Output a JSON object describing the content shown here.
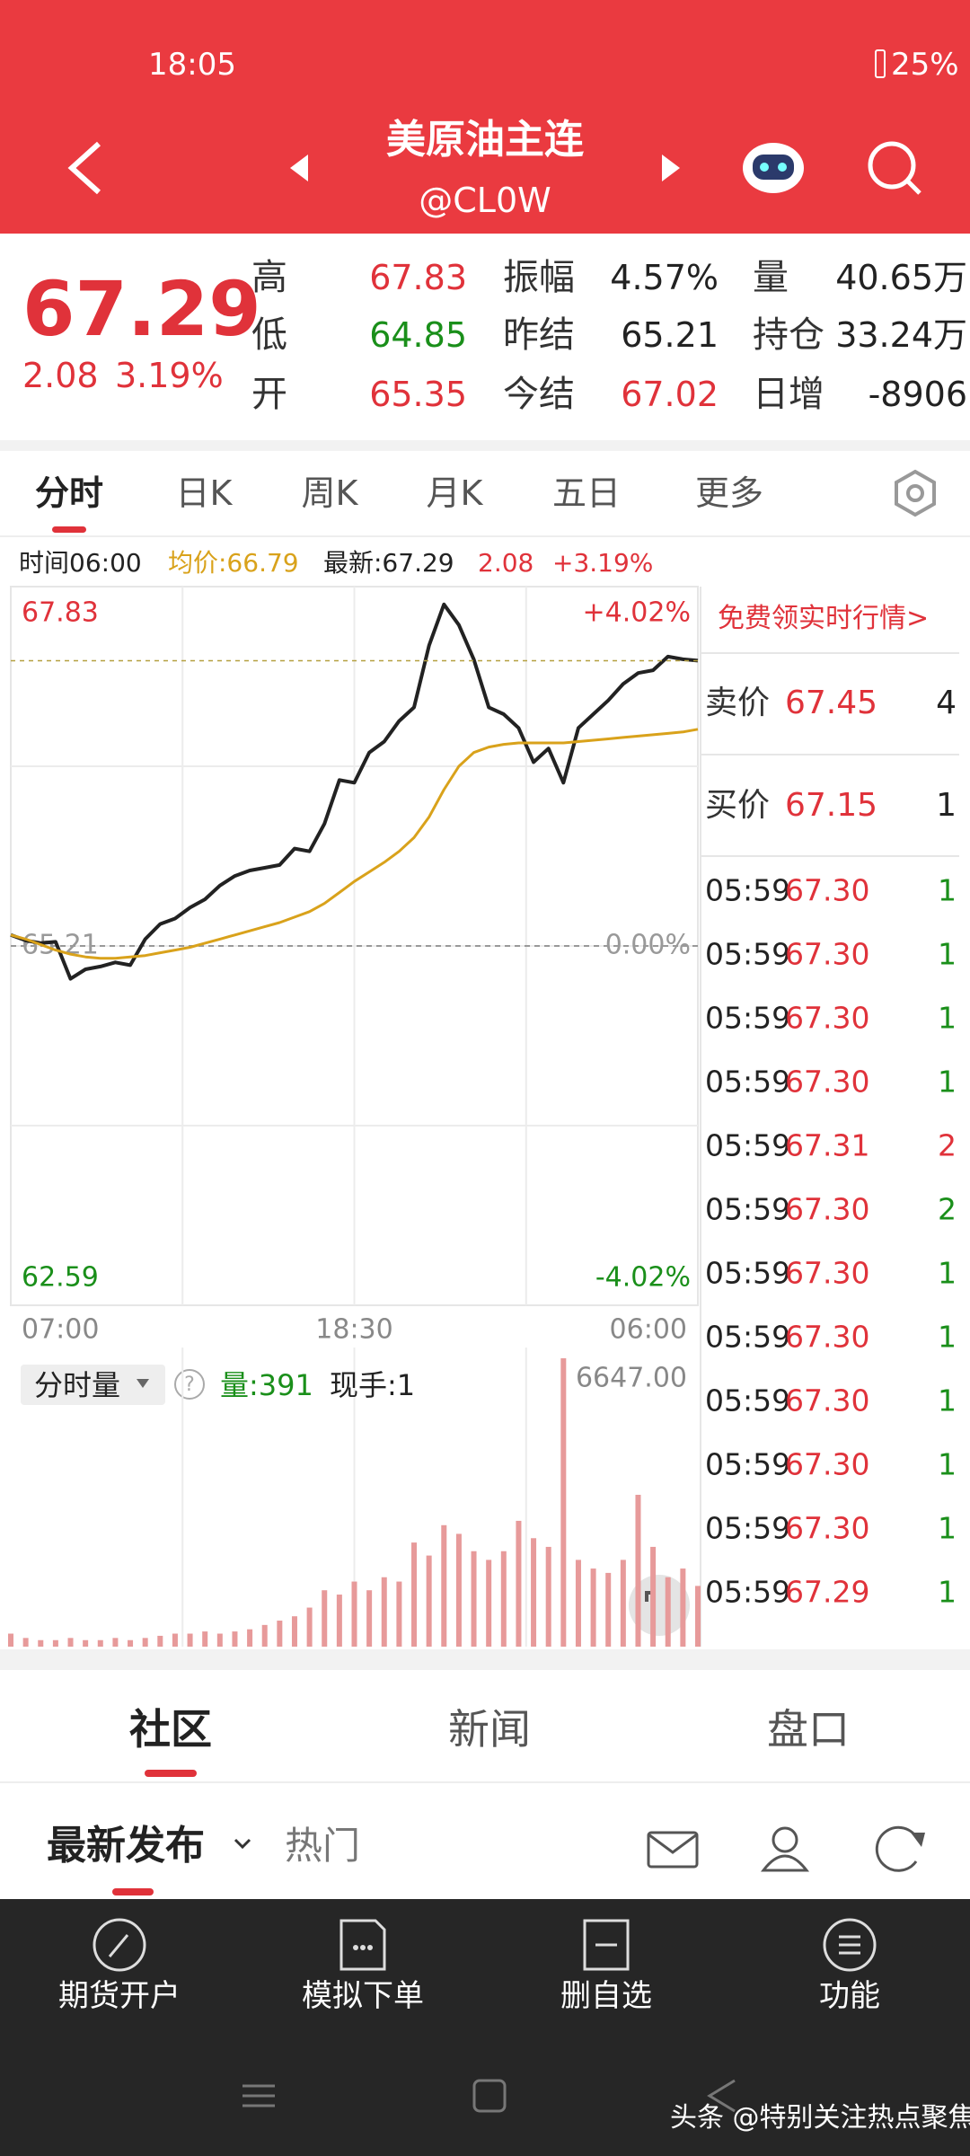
{
  "status_bar": {
    "time": "18:05",
    "battery": "25%"
  },
  "header": {
    "title": "美原油主连",
    "code": "@CL0W"
  },
  "quote": {
    "price": "67.29",
    "change": "2.08",
    "change_pct": "3.19%",
    "color": "#e0323a",
    "stats": [
      {
        "label": "高",
        "value": "67.83",
        "color": "#e0323a"
      },
      {
        "label": "振幅",
        "value": "4.57%",
        "color": "#222222"
      },
      {
        "label": "量",
        "value": "40.65万",
        "color": "#222222"
      },
      {
        "label": "低",
        "value": "64.85",
        "color": "#1a8f1a"
      },
      {
        "label": "昨结",
        "value": "65.21",
        "color": "#222222"
      },
      {
        "label": "持仓",
        "value": "33.24万",
        "color": "#222222"
      },
      {
        "label": "开",
        "value": "65.35",
        "color": "#e0323a"
      },
      {
        "label": "今结",
        "value": "67.02",
        "color": "#e0323a"
      },
      {
        "label": "日增",
        "value": "-8906",
        "color": "#222222"
      }
    ]
  },
  "tabs": [
    "分时",
    "日K",
    "周K",
    "月K",
    "五日",
    "更多"
  ],
  "info": {
    "time": "时间06:00",
    "avg": "均价:66.79",
    "latest": "最新:67.29",
    "change": "2.08",
    "change_pct": "+3.19%"
  },
  "side_panel": {
    "promo": "免费领实时行情>",
    "book": [
      {
        "label": "卖价",
        "price": "67.45",
        "qty": "4"
      },
      {
        "label": "买价",
        "price": "67.15",
        "qty": "1"
      }
    ],
    "trades": [
      {
        "time": "05:59",
        "price": "67.30",
        "qty": "1",
        "color": "#1a8f1a"
      },
      {
        "time": "05:59",
        "price": "67.30",
        "qty": "1",
        "color": "#1a8f1a"
      },
      {
        "time": "05:59",
        "price": "67.30",
        "qty": "1",
        "color": "#1a8f1a"
      },
      {
        "time": "05:59",
        "price": "67.30",
        "qty": "1",
        "color": "#1a8f1a"
      },
      {
        "time": "05:59",
        "price": "67.31",
        "qty": "2",
        "color": "#e0323a"
      },
      {
        "time": "05:59",
        "price": "67.30",
        "qty": "2",
        "color": "#1a8f1a"
      },
      {
        "time": "05:59",
        "price": "67.30",
        "qty": "1",
        "color": "#1a8f1a"
      },
      {
        "time": "05:59",
        "price": "67.30",
        "qty": "1",
        "color": "#1a8f1a"
      },
      {
        "time": "05:59",
        "price": "67.30",
        "qty": "1",
        "color": "#1a8f1a"
      },
      {
        "time": "05:59",
        "price": "67.30",
        "qty": "1",
        "color": "#1a8f1a"
      },
      {
        "time": "05:59",
        "price": "67.30",
        "qty": "1",
        "color": "#1a8f1a"
      },
      {
        "time": "05:59",
        "price": "67.29",
        "qty": "1",
        "color": "#1a8f1a"
      }
    ]
  },
  "volume_header": {
    "title": "分时量",
    "volume": "量:391",
    "hand": "现手:1"
  },
  "chart_data": {
    "type": "line",
    "x": [
      "07:00",
      "07:30",
      "08:00",
      "08:30",
      "09:00",
      "09:30",
      "10:00",
      "10:30",
      "11:00",
      "11:30",
      "12:00",
      "12:30",
      "13:00",
      "13:30",
      "14:00",
      "14:30",
      "15:00",
      "15:30",
      "16:00",
      "16:30",
      "17:00",
      "17:30",
      "18:00",
      "18:30",
      "19:00",
      "19:30",
      "20:00",
      "20:30",
      "21:00",
      "21:30",
      "22:00",
      "22:30",
      "23:00",
      "23:30",
      "00:00",
      "00:30",
      "01:00",
      "01:30",
      "02:00",
      "02:30",
      "03:00",
      "03:30",
      "04:00",
      "04:30",
      "05:00",
      "05:30",
      "06:00"
    ],
    "series": [
      {
        "color": "#222222",
        "values": [
          65.29,
          65.25,
          65.23,
          65.24,
          64.97,
          65.04,
          65.06,
          65.09,
          65.07,
          65.26,
          65.37,
          65.41,
          65.49,
          65.55,
          65.65,
          65.72,
          65.76,
          65.78,
          65.8,
          65.92,
          65.9,
          66.1,
          66.42,
          66.4,
          66.62,
          66.7,
          66.85,
          66.95,
          67.4,
          67.7,
          67.55,
          67.3,
          66.95,
          66.9,
          66.8,
          66.55,
          66.65,
          66.4,
          66.8,
          66.9,
          67.0,
          67.12,
          67.2,
          67.22,
          67.32,
          67.3,
          67.29
        ]
      },
      {
        "color": "#d9a21b",
        "values": [
          65.29,
          65.26,
          65.22,
          65.18,
          65.15,
          65.13,
          65.12,
          65.12,
          65.13,
          65.14,
          65.16,
          65.18,
          65.2,
          65.23,
          65.26,
          65.29,
          65.32,
          65.35,
          65.38,
          65.42,
          65.46,
          65.52,
          65.6,
          65.68,
          65.75,
          65.82,
          65.9,
          66.0,
          66.15,
          66.35,
          66.52,
          66.62,
          66.66,
          66.68,
          66.69,
          66.69,
          66.69,
          66.69,
          66.7,
          66.71,
          66.72,
          66.73,
          66.74,
          66.75,
          66.76,
          66.77,
          66.79
        ]
      }
    ],
    "ylim": [
      62.59,
      67.83
    ],
    "yticks": [
      67.83,
      65.21,
      62.59
    ],
    "y2lim": [
      -4.02,
      4.02
    ],
    "y2ticks": [
      {
        "value": 4.02,
        "label": "+4.02%"
      },
      {
        "value": 0,
        "label": "0.00%"
      },
      {
        "value": -4.02,
        "label": "-4.02%"
      }
    ],
    "tick_colors": [
      "#e0323a",
      "#999999",
      "#1a8f1a"
    ],
    "xticks": [
      "07:00",
      "18:30",
      "06:00"
    ],
    "volume": {
      "color": "#e79a9a",
      "ylim": [
        0,
        6647
      ],
      "yticks": [
        {
          "value": 6647,
          "label": "6647.00"
        }
      ],
      "values": [
        300,
        200,
        150,
        150,
        200,
        150,
        150,
        200,
        150,
        200,
        250,
        300,
        300,
        350,
        300,
        350,
        400,
        500,
        600,
        700,
        900,
        1300,
        1200,
        1500,
        1300,
        1600,
        1500,
        2400,
        2100,
        2800,
        2600,
        2200,
        2000,
        2200,
        2900,
        2500,
        2300,
        6647,
        2000,
        1800,
        1700,
        2000,
        3500,
        2300,
        1600,
        1800,
        1400
      ]
    }
  },
  "community": {
    "tabs": [
      "社区",
      "新闻",
      "盘口"
    ],
    "sub_tabs": [
      "最新发布",
      "热门"
    ]
  },
  "bottom_nav": [
    "期货开户",
    "模拟下单",
    "删自选",
    "功能"
  ],
  "watermark": "头条 @特别关注热点聚焦"
}
